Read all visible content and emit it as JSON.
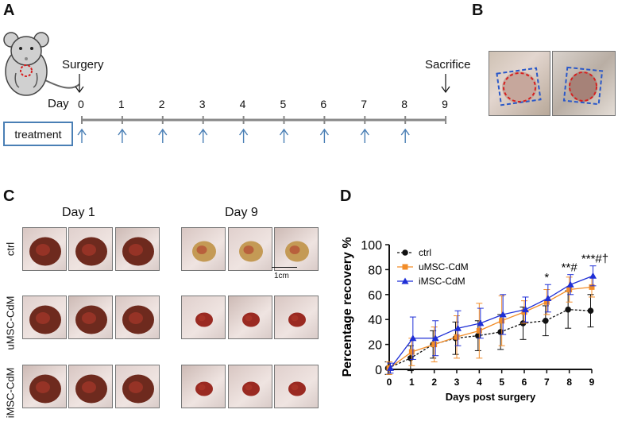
{
  "panels": {
    "a": "A",
    "b": "B",
    "c": "C",
    "d": "D"
  },
  "timeline": {
    "surgery_label": "Surgery",
    "sacrifice_label": "Sacrifice",
    "day_label": "Day",
    "days": [
      "0",
      "1",
      "2",
      "3",
      "4",
      "5",
      "6",
      "7",
      "8",
      "9"
    ],
    "treatment_label": "treatment",
    "treatment_days": 9
  },
  "photos": {
    "day1_label": "Day 1",
    "day9_label": "Day 9",
    "rows": [
      "ctrl",
      "uMSC-CdM",
      "iMSC-CdM"
    ],
    "scale_label": "1cm"
  },
  "chart_data": {
    "type": "line",
    "ylabel": "Percentage recovery %",
    "xlabel": "Days post surgery",
    "x": [
      0,
      1,
      2,
      3,
      4,
      5,
      6,
      7,
      8,
      9
    ],
    "xlim": [
      0,
      9
    ],
    "ylim": [
      0,
      100
    ],
    "yticks": [
      0,
      20,
      40,
      60,
      80,
      100
    ],
    "series": [
      {
        "name": "ctrl",
        "color": "#111111",
        "marker": "circle",
        "dashed": true,
        "values": [
          1,
          9,
          20,
          25,
          27,
          30,
          37,
          39,
          48,
          47
        ],
        "err": [
          5,
          10,
          11,
          13,
          12,
          14,
          13,
          12,
          15,
          13
        ]
      },
      {
        "name": "uMSC-CdM",
        "color": "#f28c28",
        "marker": "square",
        "dashed": false,
        "values": [
          1,
          14,
          20,
          26,
          31,
          39,
          46,
          54,
          64,
          66
        ],
        "err": [
          5,
          11,
          14,
          17,
          22,
          20,
          9,
          10,
          10,
          8
        ]
      },
      {
        "name": "iMSC-CdM",
        "color": "#1f2fd6",
        "marker": "triangle",
        "dashed": false,
        "values": [
          1,
          25,
          25,
          33,
          37,
          44,
          48,
          57,
          68,
          75
        ],
        "err": [
          4,
          17,
          14,
          14,
          12,
          16,
          10,
          11,
          8,
          8
        ]
      }
    ],
    "annotations": [
      {
        "x": 7,
        "text": "*"
      },
      {
        "x": 8,
        "text": "**#"
      },
      {
        "x": 9,
        "text": "***#†"
      }
    ]
  },
  "colors": {
    "timeline_axis": "#888888",
    "treatment_blue": "#4a7fb5",
    "wound_red": "#d62020",
    "wound_blue": "#2a58c8"
  }
}
